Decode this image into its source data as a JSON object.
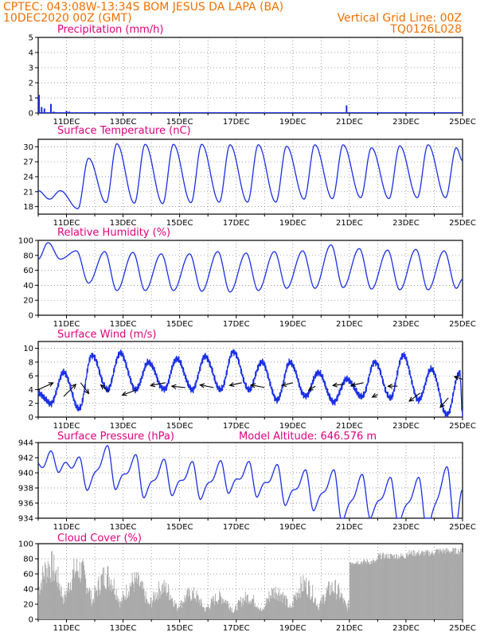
{
  "header": {
    "line1_left": "CPTEC:   043:08W-13:34S   BOM JESUS DA LAPA (BA)",
    "line2_left": "10DEC2020 00Z (GMT)",
    "line2_right": "Vertical Grid Line: 00Z",
    "line3_right": "TQ0126L028"
  },
  "model_altitude": "Model Altitude: 646.576 m",
  "colors": {
    "header": "#f07000",
    "title": "#e0007f",
    "series": "#1a2fe6",
    "cloud": "#a8a8a8",
    "arrow": "#000000"
  },
  "x_tick_labels": [
    "11DEC",
    "13DEC",
    "15DEC",
    "17DEC",
    "19DEC",
    "21DEC",
    "23DEC",
    "25DEC"
  ],
  "chart_data": [
    {
      "type": "bar",
      "title": "Precipitation (mm/h)",
      "xlim_days": [
        10,
        25
      ],
      "ylim": [
        0,
        5
      ],
      "yticks": [
        0,
        1,
        2,
        3,
        4,
        5
      ],
      "spikes": [
        {
          "day": 10.03,
          "value": 1.2
        },
        {
          "day": 10.12,
          "value": 0.4
        },
        {
          "day": 10.22,
          "value": 0.3
        },
        {
          "day": 10.45,
          "value": 0.6
        },
        {
          "day": 10.55,
          "value": 0.1
        },
        {
          "day": 11.0,
          "value": 0.15
        },
        {
          "day": 11.1,
          "value": 0.1
        },
        {
          "day": 15.3,
          "value": 0.05
        },
        {
          "day": 19.2,
          "value": 0.05
        },
        {
          "day": 20.9,
          "value": 0.5
        },
        {
          "day": 22.8,
          "value": 0.05
        }
      ],
      "grid": true
    },
    {
      "type": "line",
      "title": "Surface Temperature (nC)",
      "xlim_days": [
        10,
        25
      ],
      "ylim": [
        16.5,
        31.5
      ],
      "yticks": [
        18,
        21,
        24,
        27,
        30
      ],
      "daily_min": [
        19.5,
        17.6,
        18.8,
        18.7,
        18.6,
        18.8,
        18.9,
        18.9,
        18.9,
        19.5,
        19.6,
        19.8,
        19.6,
        19.8,
        19.8
      ],
      "daily_max": [
        21.2,
        27.7,
        30.6,
        30.5,
        30.5,
        30.5,
        30.4,
        30.4,
        30.1,
        30.4,
        30.4,
        29.8,
        30.2,
        30.4,
        29.8
      ],
      "end_value": 27.2,
      "grid": true
    },
    {
      "type": "line",
      "title": "Relative Humidity (%)",
      "xlim_days": [
        10,
        25
      ],
      "ylim": [
        0,
        100
      ],
      "yticks": [
        0,
        20,
        40,
        60,
        80,
        100
      ],
      "daily_max": [
        97,
        86,
        85,
        84,
        82,
        82,
        85,
        83,
        85,
        86,
        94,
        89,
        87,
        88,
        86
      ],
      "daily_min": [
        75,
        43,
        33,
        33,
        33,
        32,
        31,
        33,
        36,
        36,
        37,
        35,
        34,
        34,
        36
      ],
      "end_value": 48,
      "grid": true
    },
    {
      "type": "line",
      "title": "Surface Wind (m/s)",
      "xlim_days": [
        10,
        25
      ],
      "ylim": [
        0,
        11
      ],
      "yticks": [
        0,
        2,
        4,
        6,
        8,
        10
      ],
      "daily_max": [
        6.5,
        9.0,
        9.3,
        8.0,
        8.5,
        8.8,
        9.5,
        8.0,
        8.0,
        6.5,
        5.5,
        8.0,
        9.0,
        7.0,
        6.5
      ],
      "daily_min": [
        2.0,
        1.2,
        4.0,
        4.0,
        4.0,
        4.0,
        4.0,
        4.0,
        2.5,
        3.0,
        2.2,
        3.0,
        2.8,
        2.5,
        0.3
      ],
      "arrows": [
        {
          "day": 10.0,
          "speed": 4.0,
          "dx": 0.55,
          "dy": 0.25
        },
        {
          "day": 10.9,
          "speed": 3.0,
          "dx": 0.45,
          "dy": 0.45
        },
        {
          "day": 11.5,
          "speed": 5.0,
          "dx": 0.3,
          "dy": -0.4
        },
        {
          "day": 12.5,
          "speed": 3.7,
          "dx": -0.3,
          "dy": 0.25
        },
        {
          "day": 13.5,
          "speed": 4.0,
          "dx": -0.55,
          "dy": -0.2
        },
        {
          "day": 14.5,
          "speed": 5.0,
          "dx": -0.55,
          "dy": -0.1
        },
        {
          "day": 15.2,
          "speed": 4.3,
          "dx": -0.5,
          "dy": 0.05
        },
        {
          "day": 16.2,
          "speed": 4.3,
          "dx": -0.5,
          "dy": 0.1
        },
        {
          "day": 17.2,
          "speed": 5.0,
          "dx": -0.45,
          "dy": -0.1
        },
        {
          "day": 18.0,
          "speed": 4.3,
          "dx": -0.5,
          "dy": 0.1
        },
        {
          "day": 19.0,
          "speed": 5.0,
          "dx": -0.4,
          "dy": -0.1
        },
        {
          "day": 19.8,
          "speed": 4.5,
          "dx": -0.25,
          "dy": -0.15
        },
        {
          "day": 20.8,
          "speed": 4.8,
          "dx": -0.4,
          "dy": -0.05
        },
        {
          "day": 21.5,
          "speed": 5.0,
          "dx": -0.45,
          "dy": -0.1
        },
        {
          "day": 22.0,
          "speed": 3.3,
          "dx": -0.2,
          "dy": -0.1
        },
        {
          "day": 22.7,
          "speed": 4.5,
          "dx": -0.35,
          "dy": 0.0
        },
        {
          "day": 23.5,
          "speed": 3.5,
          "dx": -0.4,
          "dy": -0.3
        },
        {
          "day": 24.5,
          "speed": 2.8,
          "dx": -0.3,
          "dy": -0.35
        },
        {
          "day": 25.0,
          "speed": 5.5,
          "dx": -0.3,
          "dy": 0.1
        }
      ],
      "grid": true
    },
    {
      "type": "line",
      "title": "Surface Pressure (hPa)",
      "xlim_days": [
        10,
        25
      ],
      "ylim": [
        934,
        944
      ],
      "yticks": [
        934,
        936,
        938,
        940,
        942,
        944
      ],
      "daily_max": [
        942.3,
        941.5,
        943.0,
        941.8,
        941.2,
        940.9,
        941.0,
        940.9,
        940.5,
        939.8,
        939.8,
        939.2,
        938.8,
        938.8,
        940.2
      ],
      "daily_min": [
        940.6,
        938.2,
        938.3,
        937.2,
        937.5,
        937.0,
        937.8,
        937.3,
        936.2,
        935.5,
        934.0,
        934.5,
        933.8,
        933.0,
        933.0
      ],
      "end_value": 937.2,
      "grid": true
    },
    {
      "type": "area",
      "title": "Cloud Cover (%)",
      "xlim_days": [
        10,
        25
      ],
      "ylim": [
        0,
        100
      ],
      "yticks": [
        0,
        20,
        40,
        60,
        80,
        100
      ],
      "daily_cloud": [
        85,
        80,
        70,
        60,
        50,
        40,
        35,
        35,
        45,
        55,
        50,
        80,
        88,
        92,
        95
      ],
      "grid": true
    }
  ]
}
